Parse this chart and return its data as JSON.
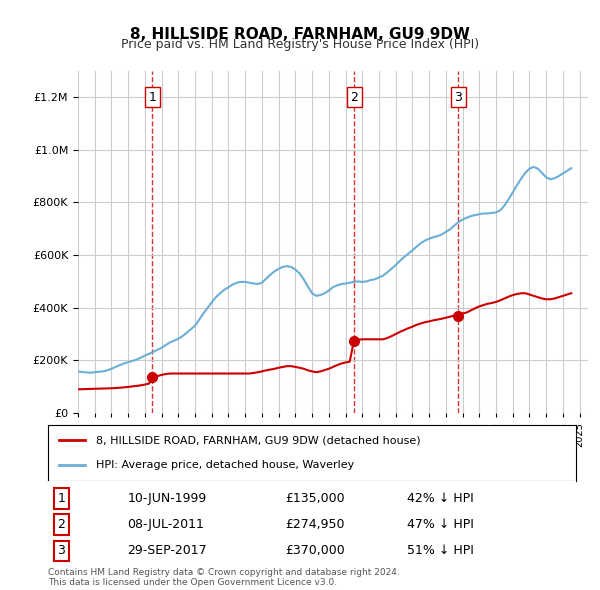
{
  "title": "8, HILLSIDE ROAD, FARNHAM, GU9 9DW",
  "subtitle": "Price paid vs. HM Land Registry's House Price Index (HPI)",
  "hpi_color": "#6baed6",
  "price_color": "#cc0000",
  "vline_color": "#cc0000",
  "background_color": "#ffffff",
  "grid_color": "#cccccc",
  "ylim": [
    0,
    1300000
  ],
  "xlim_start": 1995.0,
  "xlim_end": 2025.5,
  "legend_label_red": "8, HILLSIDE ROAD, FARNHAM, GU9 9DW (detached house)",
  "legend_label_blue": "HPI: Average price, detached house, Waverley",
  "transactions": [
    {
      "num": 1,
      "date": "10-JUN-1999",
      "price": 135000,
      "pct": "42% ↓ HPI",
      "year": 1999.44
    },
    {
      "num": 2,
      "date": "08-JUL-2011",
      "price": 274950,
      "pct": "47% ↓ HPI",
      "year": 2011.52
    },
    {
      "num": 3,
      "date": "29-SEP-2017",
      "price": 370000,
      "pct": "51% ↓ HPI",
      "year": 2017.75
    }
  ],
  "footnote1": "Contains HM Land Registry data © Crown copyright and database right 2024.",
  "footnote2": "This data is licensed under the Open Government Licence v3.0.",
  "hpi_data_x": [
    1995.0,
    1995.25,
    1995.5,
    1995.75,
    1996.0,
    1996.25,
    1996.5,
    1996.75,
    1997.0,
    1997.25,
    1997.5,
    1997.75,
    1998.0,
    1998.25,
    1998.5,
    1998.75,
    1999.0,
    1999.25,
    1999.5,
    1999.75,
    2000.0,
    2000.25,
    2000.5,
    2000.75,
    2001.0,
    2001.25,
    2001.5,
    2001.75,
    2002.0,
    2002.25,
    2002.5,
    2002.75,
    2003.0,
    2003.25,
    2003.5,
    2003.75,
    2004.0,
    2004.25,
    2004.5,
    2004.75,
    2005.0,
    2005.25,
    2005.5,
    2005.75,
    2006.0,
    2006.25,
    2006.5,
    2006.75,
    2007.0,
    2007.25,
    2007.5,
    2007.75,
    2008.0,
    2008.25,
    2008.5,
    2008.75,
    2009.0,
    2009.25,
    2009.5,
    2009.75,
    2010.0,
    2010.25,
    2010.5,
    2010.75,
    2011.0,
    2011.25,
    2011.5,
    2011.75,
    2012.0,
    2012.25,
    2012.5,
    2012.75,
    2013.0,
    2013.25,
    2013.5,
    2013.75,
    2014.0,
    2014.25,
    2014.5,
    2014.75,
    2015.0,
    2015.25,
    2015.5,
    2015.75,
    2016.0,
    2016.25,
    2016.5,
    2016.75,
    2017.0,
    2017.25,
    2017.5,
    2017.75,
    2018.0,
    2018.25,
    2018.5,
    2018.75,
    2019.0,
    2019.25,
    2019.5,
    2019.75,
    2020.0,
    2020.25,
    2020.5,
    2020.75,
    2021.0,
    2021.25,
    2021.5,
    2021.75,
    2022.0,
    2022.25,
    2022.5,
    2022.75,
    2023.0,
    2023.25,
    2023.5,
    2023.75,
    2024.0,
    2024.25,
    2024.5
  ],
  "hpi_data_y": [
    158000,
    156000,
    154000,
    153000,
    155000,
    157000,
    158000,
    162000,
    168000,
    175000,
    182000,
    188000,
    193000,
    198000,
    203000,
    210000,
    218000,
    225000,
    232000,
    240000,
    248000,
    258000,
    268000,
    275000,
    282000,
    292000,
    305000,
    318000,
    332000,
    355000,
    378000,
    400000,
    420000,
    440000,
    455000,
    468000,
    478000,
    488000,
    495000,
    498000,
    498000,
    495000,
    492000,
    490000,
    495000,
    510000,
    525000,
    538000,
    548000,
    555000,
    558000,
    555000,
    545000,
    530000,
    508000,
    480000,
    455000,
    445000,
    448000,
    455000,
    465000,
    478000,
    485000,
    490000,
    492000,
    495000,
    498000,
    500000,
    498000,
    500000,
    505000,
    508000,
    515000,
    522000,
    535000,
    548000,
    562000,
    578000,
    592000,
    605000,
    618000,
    632000,
    645000,
    655000,
    662000,
    668000,
    672000,
    678000,
    688000,
    698000,
    712000,
    725000,
    735000,
    742000,
    748000,
    752000,
    755000,
    758000,
    758000,
    760000,
    762000,
    770000,
    788000,
    812000,
    838000,
    865000,
    890000,
    912000,
    928000,
    935000,
    928000,
    912000,
    895000,
    888000,
    892000,
    900000,
    910000,
    920000,
    930000
  ],
  "price_data_x": [
    1995.0,
    1995.25,
    1995.5,
    1995.75,
    1996.0,
    1996.25,
    1996.5,
    1996.75,
    1997.0,
    1997.25,
    1997.5,
    1997.75,
    1998.0,
    1998.25,
    1998.5,
    1998.75,
    1999.0,
    1999.25,
    1999.5,
    1999.75,
    2000.0,
    2000.25,
    2000.5,
    2000.75,
    2001.0,
    2001.25,
    2001.5,
    2001.75,
    2002.0,
    2002.25,
    2002.5,
    2002.75,
    2003.0,
    2003.25,
    2003.5,
    2003.75,
    2004.0,
    2004.25,
    2004.5,
    2004.75,
    2005.0,
    2005.25,
    2005.5,
    2005.75,
    2006.0,
    2006.25,
    2006.5,
    2006.75,
    2007.0,
    2007.25,
    2007.5,
    2007.75,
    2008.0,
    2008.25,
    2008.5,
    2008.75,
    2009.0,
    2009.25,
    2009.5,
    2009.75,
    2010.0,
    2010.25,
    2010.5,
    2010.75,
    2011.0,
    2011.25,
    2011.5,
    2011.75,
    2012.0,
    2012.25,
    2012.5,
    2012.75,
    2013.0,
    2013.25,
    2013.5,
    2013.75,
    2014.0,
    2014.25,
    2014.5,
    2014.75,
    2015.0,
    2015.25,
    2015.5,
    2015.75,
    2016.0,
    2016.25,
    2016.5,
    2016.75,
    2017.0,
    2017.25,
    2017.5,
    2017.75,
    2018.0,
    2018.25,
    2018.5,
    2018.75,
    2019.0,
    2019.25,
    2019.5,
    2019.75,
    2020.0,
    2020.25,
    2020.5,
    2020.75,
    2021.0,
    2021.25,
    2021.5,
    2021.75,
    2022.0,
    2022.25,
    2022.5,
    2022.75,
    2023.0,
    2023.25,
    2023.5,
    2023.75,
    2024.0,
    2024.25,
    2024.5
  ],
  "price_data_y": [
    90000,
    90500,
    91000,
    91500,
    92000,
    92500,
    93000,
    93500,
    94000,
    95000,
    96000,
    97500,
    99000,
    101000,
    103000,
    105000,
    108000,
    112000,
    135000,
    140000,
    145000,
    148000,
    150000,
    150000,
    150000,
    150000,
    150000,
    150000,
    150000,
    150000,
    150000,
    150000,
    150000,
    150000,
    150000,
    150000,
    150000,
    150000,
    150000,
    150000,
    150000,
    150000,
    152000,
    155000,
    158000,
    162000,
    165000,
    168000,
    172000,
    175000,
    178000,
    178000,
    175000,
    172000,
    168000,
    162000,
    158000,
    155000,
    158000,
    163000,
    168000,
    175000,
    182000,
    188000,
    192000,
    195000,
    275000,
    278000,
    280000,
    280000,
    280000,
    280000,
    280000,
    280000,
    285000,
    292000,
    300000,
    308000,
    315000,
    322000,
    328000,
    335000,
    340000,
    345000,
    348000,
    352000,
    355000,
    358000,
    362000,
    366000,
    370000,
    374000,
    378000,
    382000,
    390000,
    398000,
    405000,
    410000,
    415000,
    418000,
    422000,
    428000,
    435000,
    442000,
    448000,
    452000,
    455000,
    455000,
    450000,
    445000,
    440000,
    435000,
    432000,
    432000,
    435000,
    440000,
    445000,
    450000,
    455000
  ]
}
